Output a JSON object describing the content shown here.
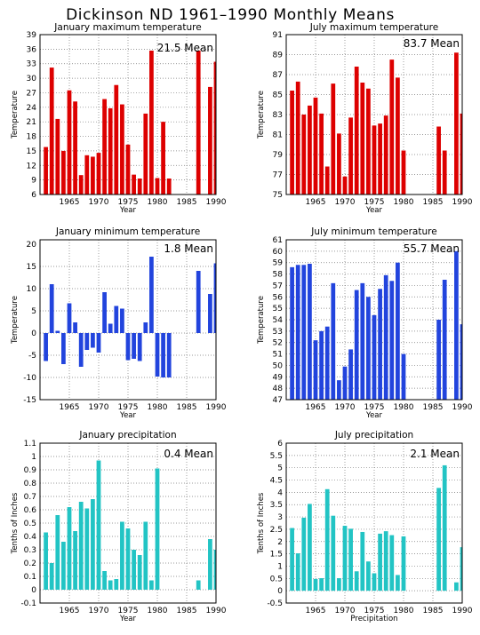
{
  "page_title": "Dickinson ND   1961–1990 Monthly Means",
  "chart_data": [
    {
      "type": "bar",
      "title": "January maximum temperature",
      "xlabel": "Year",
      "ylabel": "Temperature",
      "mean_label": "21.5 Mean",
      "color": "#dd0000",
      "xlim": [
        1960,
        1990
      ],
      "ylim": [
        6,
        39
      ],
      "ystep": 3,
      "xticks": [
        1965,
        1970,
        1975,
        1980,
        1985,
        1990
      ],
      "x": [
        1961,
        1962,
        1963,
        1964,
        1965,
        1966,
        1967,
        1968,
        1969,
        1970,
        1971,
        1972,
        1973,
        1974,
        1975,
        1976,
        1977,
        1978,
        1979,
        1980,
        1981,
        1982,
        1987,
        1989,
        1990
      ],
      "values": [
        15.8,
        32.2,
        21.6,
        15.0,
        27.5,
        25.2,
        10.0,
        14.1,
        13.8,
        14.6,
        25.7,
        23.8,
        28.6,
        24.6,
        16.3,
        10.1,
        9.3,
        22.7,
        35.7,
        9.4,
        21.0,
        9.3,
        35.7,
        28.2,
        33.4
      ]
    },
    {
      "type": "bar",
      "title": "July maximum temperature",
      "xlabel": "Year",
      "ylabel": "Temperature",
      "mean_label": "83.7 Mean",
      "color": "#dd0000",
      "xlim": [
        1960,
        1990
      ],
      "ylim": [
        75,
        91
      ],
      "ystep": 2,
      "xticks": [
        1965,
        1970,
        1975,
        1980,
        1985,
        1990
      ],
      "x": [
        1961,
        1962,
        1963,
        1964,
        1965,
        1966,
        1967,
        1968,
        1969,
        1970,
        1971,
        1972,
        1973,
        1974,
        1975,
        1976,
        1977,
        1978,
        1979,
        1980,
        1986,
        1987,
        1989,
        1990
      ],
      "values": [
        85.4,
        86.3,
        83.0,
        83.9,
        84.7,
        83.1,
        77.8,
        86.1,
        81.1,
        76.8,
        82.7,
        87.8,
        86.2,
        85.6,
        81.9,
        82.1,
        82.9,
        88.5,
        86.7,
        79.4,
        81.8,
        79.4,
        89.2,
        83.1
      ]
    },
    {
      "type": "bar",
      "title": "January minimum temperature",
      "xlabel": "Year",
      "ylabel": "Temperature",
      "mean_label": "1.8 Mean",
      "color": "#2244dd",
      "xlim": [
        1960,
        1990
      ],
      "ylim": [
        -15,
        21
      ],
      "ystep": 5,
      "xticks": [
        1965,
        1970,
        1975,
        1980,
        1985,
        1990
      ],
      "x": [
        1961,
        1962,
        1963,
        1964,
        1965,
        1966,
        1967,
        1968,
        1969,
        1970,
        1971,
        1972,
        1973,
        1974,
        1975,
        1976,
        1977,
        1978,
        1979,
        1980,
        1981,
        1982,
        1987,
        1989,
        1990
      ],
      "values": [
        -6.3,
        11.0,
        0.5,
        -7.0,
        6.7,
        2.4,
        -7.6,
        -3.8,
        -3.3,
        -4.4,
        9.2,
        2.1,
        6.1,
        5.5,
        -6.1,
        -5.8,
        -6.3,
        2.4,
        17.2,
        -9.8,
        -10.0,
        -10.0,
        14.0,
        8.8,
        15.7
      ]
    },
    {
      "type": "bar",
      "title": "July minimum temperature",
      "xlabel": "Year",
      "ylabel": "Temperature",
      "mean_label": "55.7 Mean",
      "color": "#2244dd",
      "xlim": [
        1960,
        1990
      ],
      "ylim": [
        47,
        61
      ],
      "ystep": 1,
      "xticks": [
        1965,
        1970,
        1975,
        1980,
        1985,
        1990
      ],
      "x": [
        1961,
        1962,
        1963,
        1964,
        1965,
        1966,
        1967,
        1968,
        1969,
        1970,
        1971,
        1972,
        1973,
        1974,
        1975,
        1976,
        1977,
        1978,
        1979,
        1980,
        1986,
        1987,
        1989,
        1990
      ],
      "values": [
        58.6,
        58.8,
        58.8,
        58.9,
        52.2,
        53.0,
        53.4,
        57.2,
        48.7,
        49.9,
        51.4,
        56.6,
        57.2,
        56.0,
        54.4,
        56.7,
        57.9,
        57.4,
        59.0,
        51.0,
        54.0,
        57.5,
        60.0,
        53.6
      ]
    },
    {
      "type": "bar",
      "title": "January precipitation",
      "xlabel": "Year",
      "ylabel": "Tenths of Inches",
      "mean_label": "0.4 Mean",
      "color": "#22c4c4",
      "xlim": [
        1960,
        1990
      ],
      "ylim": [
        -0.1,
        1.1
      ],
      "ystep": 0.1,
      "xticks": [
        1965,
        1970,
        1975,
        1980,
        1985,
        1990
      ],
      "x": [
        1961,
        1962,
        1963,
        1964,
        1965,
        1966,
        1967,
        1968,
        1969,
        1970,
        1971,
        1972,
        1973,
        1974,
        1975,
        1976,
        1977,
        1978,
        1979,
        1980,
        1981,
        1982,
        1987,
        1989,
        1990
      ],
      "values": [
        0.43,
        0.2,
        0.56,
        0.36,
        0.62,
        0.44,
        0.66,
        0.61,
        0.68,
        0.97,
        0.14,
        0.07,
        0.08,
        0.51,
        0.46,
        0.3,
        0.26,
        0.51,
        0.07,
        0.91,
        0.0,
        0.0,
        0.07,
        0.38,
        0.3
      ]
    },
    {
      "type": "bar",
      "title": "July precipitation",
      "xlabel": "Precipitation",
      "ylabel": "Tenths of Inches",
      "mean_label": "2.1 Mean",
      "color": "#22c4c4",
      "xlim": [
        1960,
        1990
      ],
      "ylim": [
        -0.5,
        6
      ],
      "ystep": 0.5,
      "xticks": [
        1965,
        1970,
        1975,
        1980,
        1985,
        1990
      ],
      "x": [
        1961,
        1962,
        1963,
        1964,
        1965,
        1966,
        1967,
        1968,
        1969,
        1970,
        1971,
        1972,
        1973,
        1974,
        1975,
        1976,
        1977,
        1978,
        1979,
        1980,
        1986,
        1987,
        1989,
        1990
      ],
      "values": [
        2.55,
        1.52,
        2.97,
        3.53,
        0.48,
        0.51,
        4.13,
        3.05,
        0.51,
        2.64,
        2.52,
        0.79,
        2.39,
        1.19,
        0.71,
        2.32,
        2.42,
        2.26,
        0.64,
        2.21,
        4.18,
        5.1,
        0.34,
        1.77
      ]
    }
  ]
}
